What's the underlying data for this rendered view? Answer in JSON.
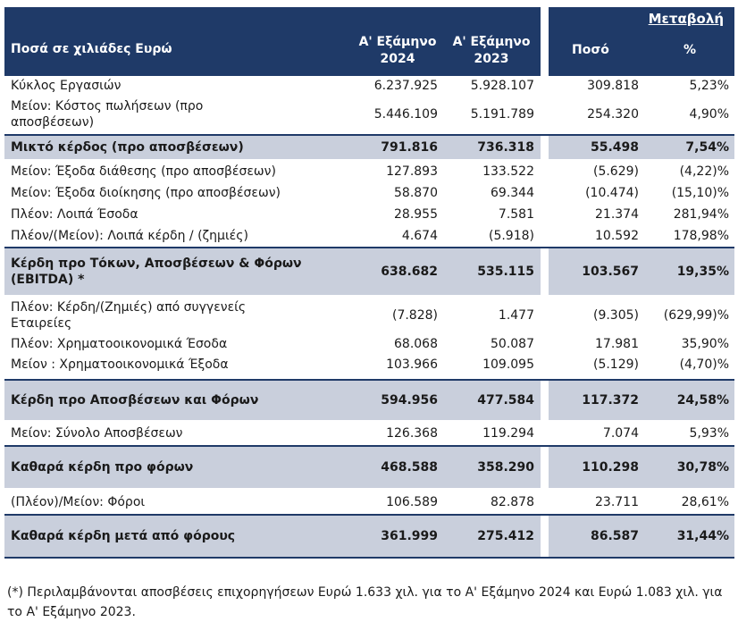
{
  "table": {
    "header": {
      "label": "Ποσά σε χιλιάδες Ευρώ",
      "col_2024": "Α' Εξάμηνο 2024",
      "col_2023": "Α' Εξάμηνο 2023",
      "change": "Μεταβολή",
      "amount": "Ποσό",
      "percent": "%"
    },
    "rows": [
      [
        "Κύκλος Εργασιών",
        "6.237.925",
        "5.928.107",
        "309.818",
        "5,23%"
      ],
      [
        "Μείον: Κόστος πωλήσεων (προ αποσβέσεων)",
        "5.446.109",
        "5.191.789",
        "254.320",
        "4,90%"
      ],
      [
        "Μικτό κέρδος (προ αποσβέσεων)",
        "791.816",
        "736.318",
        "55.498",
        "7,54%"
      ],
      [
        "Μείον: Έξοδα διάθεσης (προ αποσβέσεων)",
        "127.893",
        "133.522",
        "(5.629)",
        "(4,22)%"
      ],
      [
        "Μείον: Έξοδα διοίκησης (προ αποσβέσεων)",
        "58.870",
        "69.344",
        "(10.474)",
        "(15,10)%"
      ],
      [
        "Πλέον: Λοιπά Έσοδα",
        "28.955",
        "7.581",
        "21.374",
        "281,94%"
      ],
      [
        "Πλέον/(Μείον): Λοιπά κέρδη / (ζημιές)",
        "4.674",
        "(5.918)",
        "10.592",
        "178,98%"
      ],
      [
        "Κέρδη προ Τόκων, Αποσβέσεων & Φόρων (EBITDA) *",
        "638.682",
        "535.115",
        "103.567",
        "19,35%"
      ],
      [
        "Πλέον: Κέρδη/(Ζημιές) από συγγενείς Εταιρείες",
        "(7.828)",
        "1.477",
        "(9.305)",
        "(629,99)%"
      ],
      [
        "Πλέον: Χρηματοοικονομικά Έσοδα",
        "68.068",
        "50.087",
        "17.981",
        "35,90%"
      ],
      [
        "Μείον : Χρηματοοικονομικά Έξοδα",
        "103.966",
        "109.095",
        "(5.129)",
        "(4,70)%"
      ],
      [
        "Κέρδη προ Αποσβέσεων και Φόρων",
        "594.956",
        "477.584",
        "117.372",
        "24,58%"
      ],
      [
        "Μείον: Σύνολο Αποσβέσεων",
        "126.368",
        "119.294",
        "7.074",
        "5,93%"
      ],
      [
        "Καθαρά κέρδη προ φόρων",
        "468.588",
        "358.290",
        "110.298",
        "30,78%"
      ],
      [
        "(Πλέον)/Μείον: Φόροι",
        "106.589",
        "82.878",
        "23.711",
        "28,61%"
      ],
      [
        "Καθαρά κέρδη μετά από φόρους",
        "361.999",
        "275.412",
        "86.587",
        "31,44%"
      ]
    ],
    "footnote": "(*) Περιλαμβάνονται αποσβέσεις επιχορηγήσεων  Ευρώ 1.633 χιλ. για το Α' Εξάμηνο 2024 και Ευρώ 1.083 χιλ. για το Α' Εξάμηνο 2023."
  }
}
